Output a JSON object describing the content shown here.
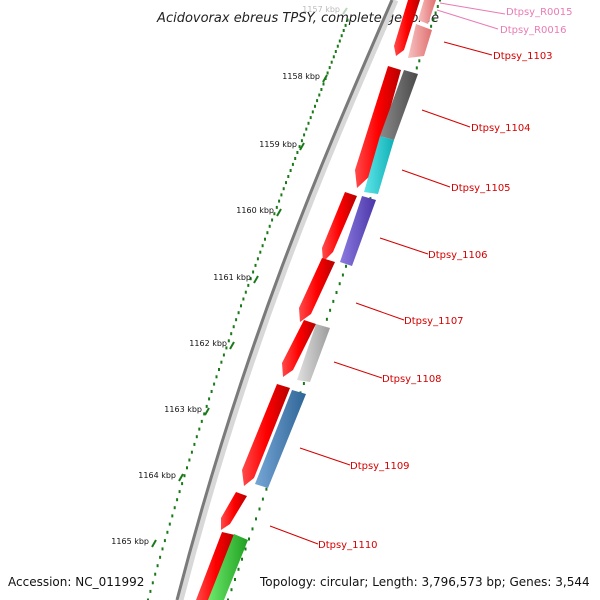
{
  "title": "Acidovorax ebreus TPSY, complete genome",
  "footer": {
    "accession": "Accession: NC_011992",
    "topology": "Topology: circular; Length: 3,796,573 bp; Genes: 3,544"
  },
  "kbp_ticks": [
    "1157 kbp",
    "1158 kbp",
    "1159 kbp",
    "1160 kbp",
    "1161 kbp",
    "1162 kbp",
    "1163 kbp",
    "1164 kbp",
    "1165 kbp"
  ],
  "gene_labels": [
    "Dtpsy_R0015",
    "Dtpsy_R0016",
    "Dtpsy_1103",
    "Dtpsy_1104",
    "Dtpsy_1105",
    "Dtpsy_1106",
    "Dtpsy_1107",
    "Dtpsy_1108",
    "Dtpsy_1109",
    "Dtpsy_1110"
  ],
  "colors": {
    "forward_strand": "#ff0000",
    "rna_genes": "#f4a3a3",
    "gene_1104": "#666666",
    "gene_1105": "#1ccfd6",
    "gene_1106": "#6a55cc",
    "gene_1108": "#bdbdbd",
    "gene_1109": "#4a82b8",
    "bottom_gene": "#33cc33",
    "backbone": "#888888",
    "ticks": "#1a7a1a",
    "labels": "#d40000",
    "rna_labels": "#e87bb5"
  }
}
